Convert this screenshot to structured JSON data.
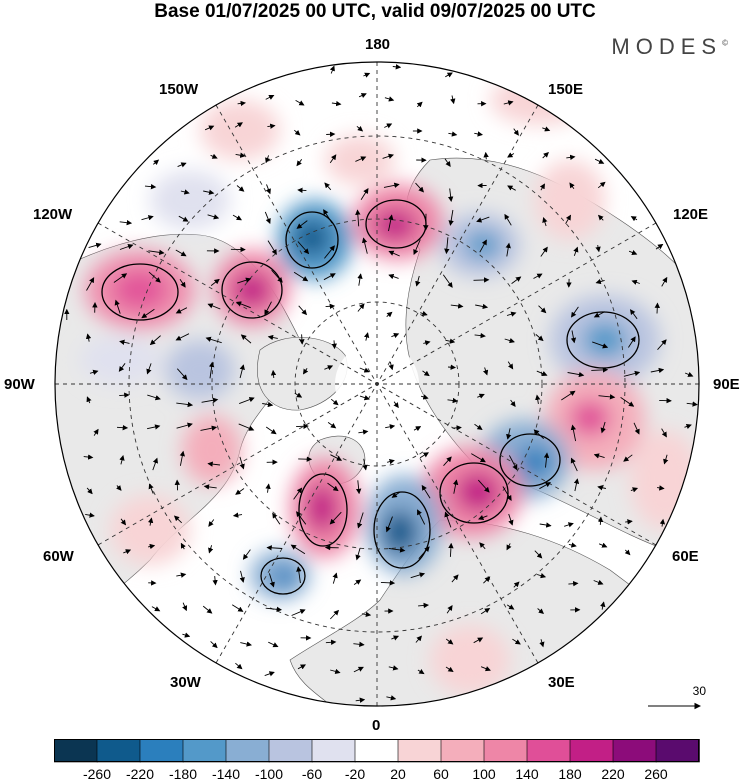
{
  "title": "Base 01/07/2025 00 UTC, valid 09/07/2025 00 UTC",
  "brand": "MODES",
  "brand_mark": "©",
  "map": {
    "projection": "north-polar-stereographic",
    "longitude_labels": {
      "top": "180",
      "bottom": "0",
      "left": "90W",
      "right": "90E",
      "upper_left": "150W",
      "upper_right": "150E",
      "mid_upper_left": "120W",
      "mid_upper_right": "120E",
      "lower_left": "60W",
      "lower_right": "60E",
      "bottom_left": "30W",
      "bottom_right": "30E"
    },
    "reference_vector_label": "30"
  },
  "colorbar": {
    "ticks": [
      "-260",
      "-220",
      "-180",
      "-140",
      "-100",
      "-60",
      "-20",
      "20",
      "60",
      "100",
      "140",
      "180",
      "220",
      "260"
    ],
    "colors": [
      "#0b3552",
      "#0f5a8c",
      "#2b7fbd",
      "#5399c9",
      "#89aed3",
      "#b9c4e0",
      "#e0e1ef",
      "#ffffff",
      "#f8d4d6",
      "#f4aebb",
      "#ee86a7",
      "#e04f98",
      "#c21f86",
      "#8c0c7a",
      "#5a0b6e"
    ]
  }
}
